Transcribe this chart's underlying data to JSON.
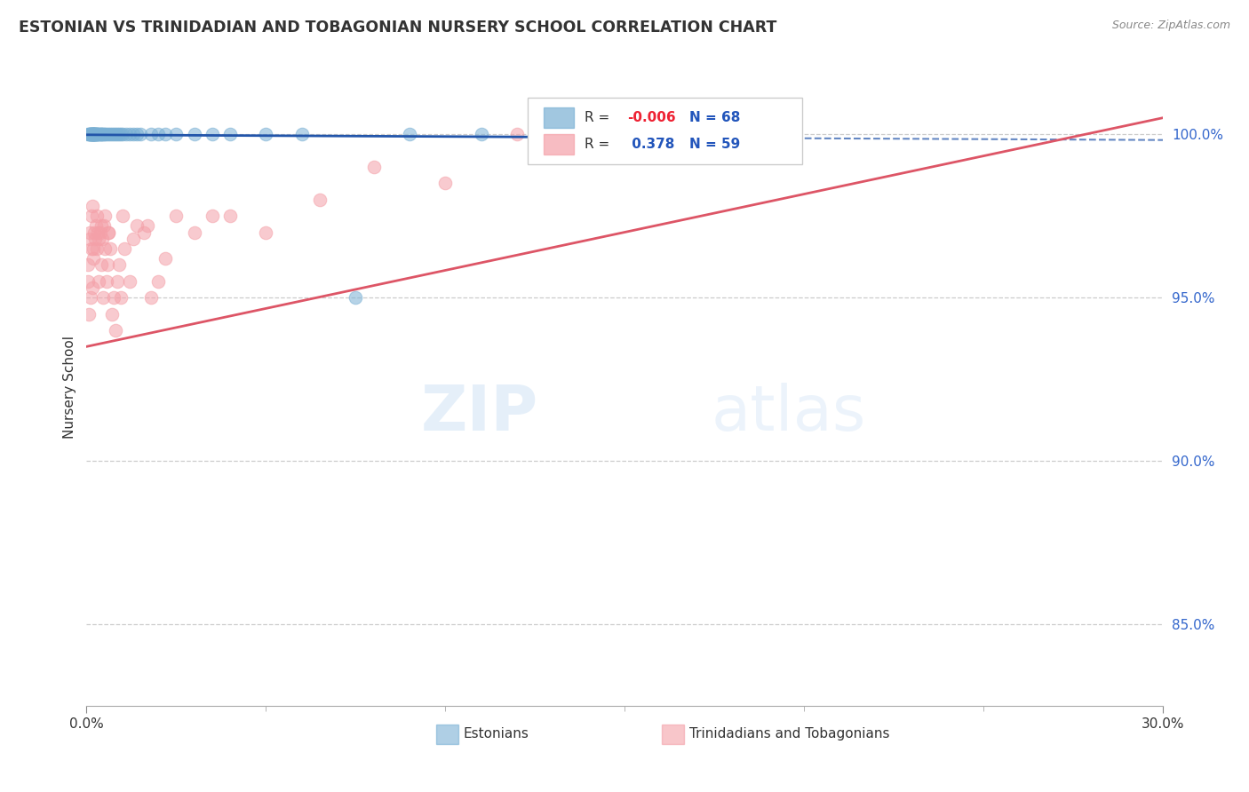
{
  "title": "ESTONIAN VS TRINIDADIAN AND TOBAGONIAN NURSERY SCHOOL CORRELATION CHART",
  "source": "Source: ZipAtlas.com",
  "ylabel": "Nursery School",
  "ytick_values": [
    85.0,
    90.0,
    95.0,
    100.0
  ],
  "xlim": [
    0.0,
    30.0
  ],
  "ylim": [
    82.5,
    102.0
  ],
  "blue_color": "#7AB0D4",
  "pink_color": "#F4A0A8",
  "blue_line_color": "#2255AA",
  "pink_line_color": "#DD5566",
  "grid_color": "#CCCCCC",
  "blue_scatter_x": [
    0.05,
    0.08,
    0.1,
    0.12,
    0.13,
    0.15,
    0.15,
    0.17,
    0.18,
    0.18,
    0.2,
    0.2,
    0.2,
    0.22,
    0.22,
    0.23,
    0.24,
    0.25,
    0.25,
    0.26,
    0.28,
    0.3,
    0.3,
    0.32,
    0.33,
    0.35,
    0.38,
    0.4,
    0.4,
    0.42,
    0.45,
    0.48,
    0.5,
    0.55,
    0.6,
    0.65,
    0.7,
    0.75,
    0.8,
    0.85,
    0.9,
    0.95,
    1.0,
    1.1,
    1.2,
    1.3,
    1.4,
    1.5,
    1.8,
    2.0,
    2.2,
    2.5,
    3.0,
    3.5,
    4.0,
    5.0,
    6.0,
    7.5,
    9.0,
    11.0,
    13.0,
    15.0,
    0.07,
    0.09,
    0.11,
    0.14,
    0.16,
    0.19
  ],
  "blue_scatter_y": [
    100.0,
    100.0,
    100.0,
    100.0,
    100.0,
    100.0,
    100.0,
    100.0,
    100.0,
    100.0,
    100.0,
    100.0,
    100.0,
    100.0,
    100.0,
    100.0,
    100.0,
    100.0,
    100.0,
    100.0,
    100.0,
    100.0,
    100.0,
    100.0,
    100.0,
    100.0,
    100.0,
    100.0,
    100.0,
    100.0,
    100.0,
    100.0,
    100.0,
    100.0,
    100.0,
    100.0,
    100.0,
    100.0,
    100.0,
    100.0,
    100.0,
    100.0,
    100.0,
    100.0,
    100.0,
    100.0,
    100.0,
    100.0,
    100.0,
    100.0,
    100.0,
    100.0,
    100.0,
    100.0,
    100.0,
    100.0,
    100.0,
    95.0,
    100.0,
    100.0,
    100.0,
    100.0,
    100.0,
    100.0,
    100.0,
    100.0,
    100.0,
    100.0
  ],
  "pink_scatter_x": [
    0.03,
    0.05,
    0.07,
    0.08,
    0.1,
    0.12,
    0.13,
    0.15,
    0.16,
    0.17,
    0.18,
    0.2,
    0.22,
    0.25,
    0.26,
    0.28,
    0.3,
    0.32,
    0.33,
    0.35,
    0.38,
    0.4,
    0.42,
    0.44,
    0.45,
    0.48,
    0.5,
    0.52,
    0.55,
    0.58,
    0.6,
    0.62,
    0.65,
    0.7,
    0.75,
    0.8,
    0.85,
    0.9,
    0.95,
    1.0,
    1.05,
    1.2,
    1.3,
    1.4,
    1.6,
    1.7,
    1.8,
    2.0,
    2.2,
    2.5,
    3.0,
    3.5,
    4.0,
    5.0,
    6.5,
    8.0,
    10.0,
    12.0,
    14.5
  ],
  "pink_scatter_y": [
    95.5,
    96.0,
    94.5,
    96.8,
    97.0,
    95.0,
    96.5,
    97.5,
    95.3,
    97.8,
    96.2,
    96.5,
    97.0,
    96.8,
    97.2,
    97.5,
    96.5,
    97.0,
    95.5,
    96.8,
    97.0,
    96.0,
    97.2,
    96.8,
    95.0,
    97.2,
    97.5,
    96.5,
    95.5,
    96.0,
    97.0,
    97.0,
    96.5,
    94.5,
    95.0,
    94.0,
    95.5,
    96.0,
    95.0,
    97.5,
    96.5,
    95.5,
    96.8,
    97.2,
    97.0,
    97.2,
    95.0,
    95.5,
    96.2,
    97.5,
    97.0,
    97.5,
    97.5,
    97.0,
    98.0,
    99.0,
    98.5,
    100.0,
    99.5
  ],
  "blue_trendline_x": [
    0.0,
    30.0
  ],
  "blue_trendline_y": [
    99.98,
    99.82
  ],
  "pink_trendline_x": [
    0.0,
    30.0
  ],
  "pink_trendline_y": [
    93.5,
    100.5
  ]
}
